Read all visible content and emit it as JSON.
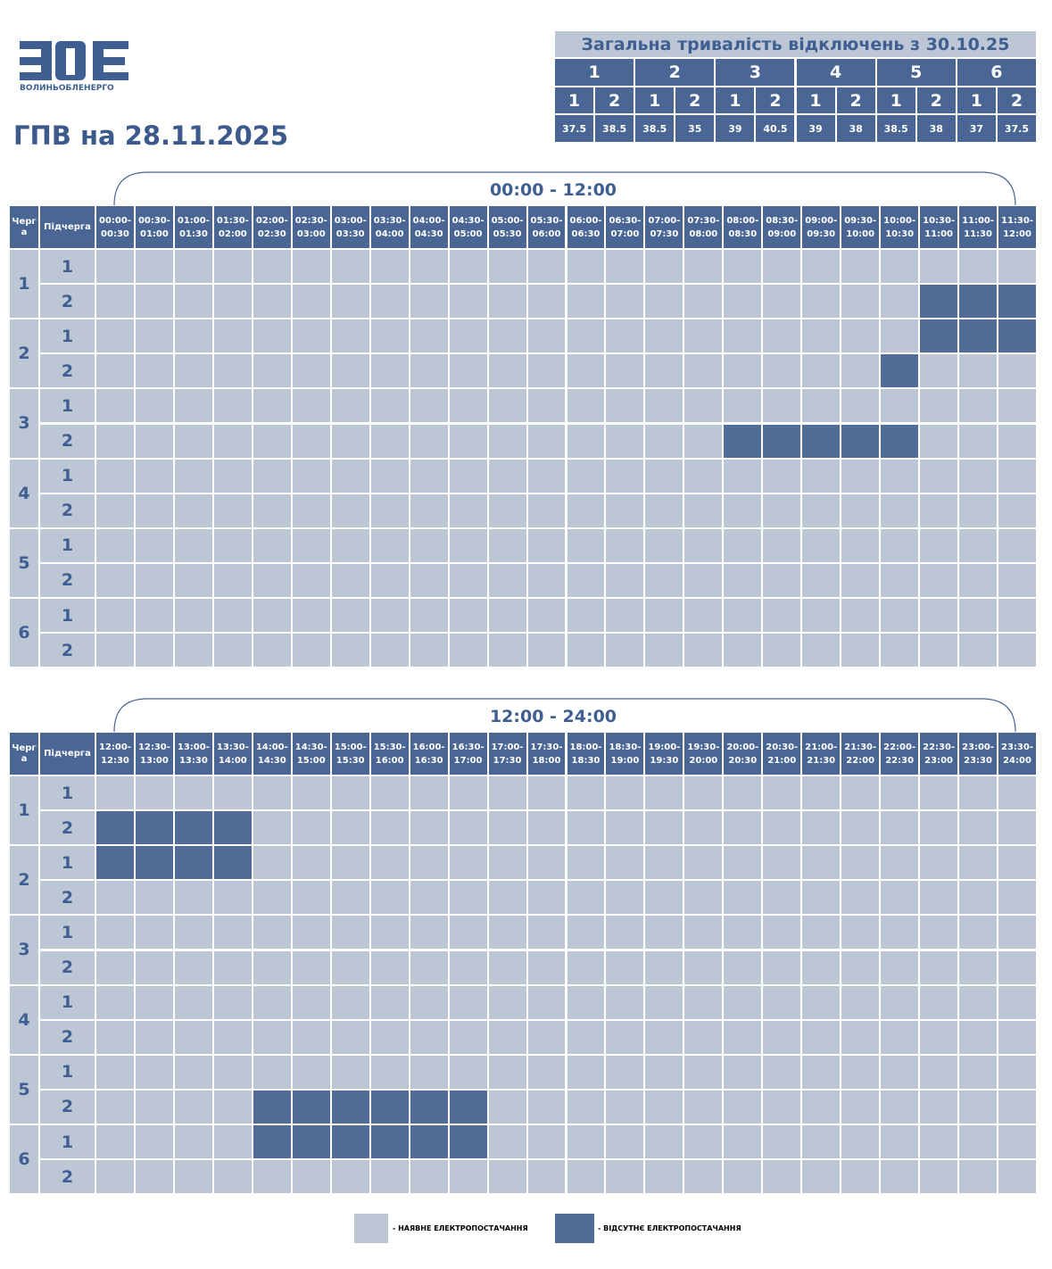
{
  "logo": {
    "text": "ВОЛИНЬОБЛЕНЕРГО"
  },
  "title": "ГПВ на 28.11.2025",
  "summary": {
    "title": "Загальна тривалість відключень з 30.10.25",
    "groups": [
      {
        "label": "1",
        "subgroups": [
          "1",
          "2"
        ],
        "values": [
          37.5,
          38.5
        ]
      },
      {
        "label": "2",
        "subgroups": [
          "1",
          "2"
        ],
        "values": [
          38.5,
          35
        ]
      },
      {
        "label": "3",
        "subgroups": [
          "1",
          "2"
        ],
        "values": [
          39,
          40.5
        ]
      },
      {
        "label": "4",
        "subgroups": [
          "1",
          "2"
        ],
        "values": [
          39,
          38
        ]
      },
      {
        "label": "5",
        "subgroups": [
          "1",
          "2"
        ],
        "values": [
          38.5,
          38
        ]
      },
      {
        "label": "6",
        "subgroups": [
          "1",
          "2"
        ],
        "values": [
          37,
          37.5
        ]
      }
    ]
  },
  "tables": [
    {
      "range": "00:00 - 12:00",
      "queue_header": "Черга",
      "subqueue_header": "Підчерга",
      "slots": [
        "00:00-00:30",
        "00:30-01:00",
        "01:00-01:30",
        "01:30-02:00",
        "02:00-02:30",
        "02:30-03:00",
        "03:00-03:30",
        "03:30-04:00",
        "04:00-04:30",
        "04:30-05:00",
        "05:00-05:30",
        "05:30-06:00",
        "06:00-06:30",
        "06:30-07:00",
        "07:00-07:30",
        "07:30-08:00",
        "08:00-08:30",
        "08:30-09:00",
        "09:00-09:30",
        "09:30-10:00",
        "10:00-10:30",
        "10:30-11:00",
        "11:00-11:30",
        "11:30-12:00"
      ],
      "queues": [
        {
          "label": "1",
          "subqueues": [
            {
              "label": "1",
              "off": []
            },
            {
              "label": "2",
              "off": [
                21,
                22,
                23
              ]
            }
          ]
        },
        {
          "label": "2",
          "subqueues": [
            {
              "label": "1",
              "off": [
                21,
                22,
                23
              ]
            },
            {
              "label": "2",
              "off": [
                20
              ]
            }
          ]
        },
        {
          "label": "3",
          "subqueues": [
            {
              "label": "1",
              "off": []
            },
            {
              "label": "2",
              "off": [
                16,
                17,
                18,
                19,
                20
              ]
            }
          ]
        },
        {
          "label": "4",
          "subqueues": [
            {
              "label": "1",
              "off": []
            },
            {
              "label": "2",
              "off": []
            }
          ]
        },
        {
          "label": "5",
          "subqueues": [
            {
              "label": "1",
              "off": []
            },
            {
              "label": "2",
              "off": []
            }
          ]
        },
        {
          "label": "6",
          "subqueues": [
            {
              "label": "1",
              "off": []
            },
            {
              "label": "2",
              "off": []
            }
          ]
        }
      ]
    },
    {
      "range": "12:00 - 24:00",
      "queue_header": "Черга",
      "subqueue_header": "Підчерга",
      "slots": [
        "12:00-12:30",
        "12:30-13:00",
        "13:00-13:30",
        "13:30-14:00",
        "14:00-14:30",
        "14:30-15:00",
        "15:00-15:30",
        "15:30-16:00",
        "16:00-16:30",
        "16:30-17:00",
        "17:00-17:30",
        "17:30-18:00",
        "18:00-18:30",
        "18:30-19:00",
        "19:00-19:30",
        "19:30-20:00",
        "20:00-20:30",
        "20:30-21:00",
        "21:00-21:30",
        "21:30-22:00",
        "22:00-22:30",
        "22:30-23:00",
        "23:00-23:30",
        "23:30-24:00"
      ],
      "queues": [
        {
          "label": "1",
          "subqueues": [
            {
              "label": "1",
              "off": []
            },
            {
              "label": "2",
              "off": [
                0,
                1,
                2,
                3
              ]
            }
          ]
        },
        {
          "label": "2",
          "subqueues": [
            {
              "label": "1",
              "off": [
                0,
                1,
                2,
                3
              ]
            },
            {
              "label": "2",
              "off": []
            }
          ]
        },
        {
          "label": "3",
          "subqueues": [
            {
              "label": "1",
              "off": []
            },
            {
              "label": "2",
              "off": []
            }
          ]
        },
        {
          "label": "4",
          "subqueues": [
            {
              "label": "1",
              "off": []
            },
            {
              "label": "2",
              "off": []
            }
          ]
        },
        {
          "label": "5",
          "subqueues": [
            {
              "label": "1",
              "off": []
            },
            {
              "label": "2",
              "off": [
                4,
                5,
                6,
                7,
                8,
                9
              ]
            }
          ]
        },
        {
          "label": "6",
          "subqueues": [
            {
              "label": "1",
              "off": [
                4,
                5,
                6,
                7,
                8,
                9
              ]
            },
            {
              "label": "2",
              "off": []
            }
          ]
        }
      ]
    }
  ],
  "legend": {
    "on": "- НАЯВНЕ ЕЛЕКТРОПОСТАЧАННЯ",
    "off": "- ВІДСУТНЄ ЕЛЕКТРОПОСТАЧАННЯ"
  }
}
